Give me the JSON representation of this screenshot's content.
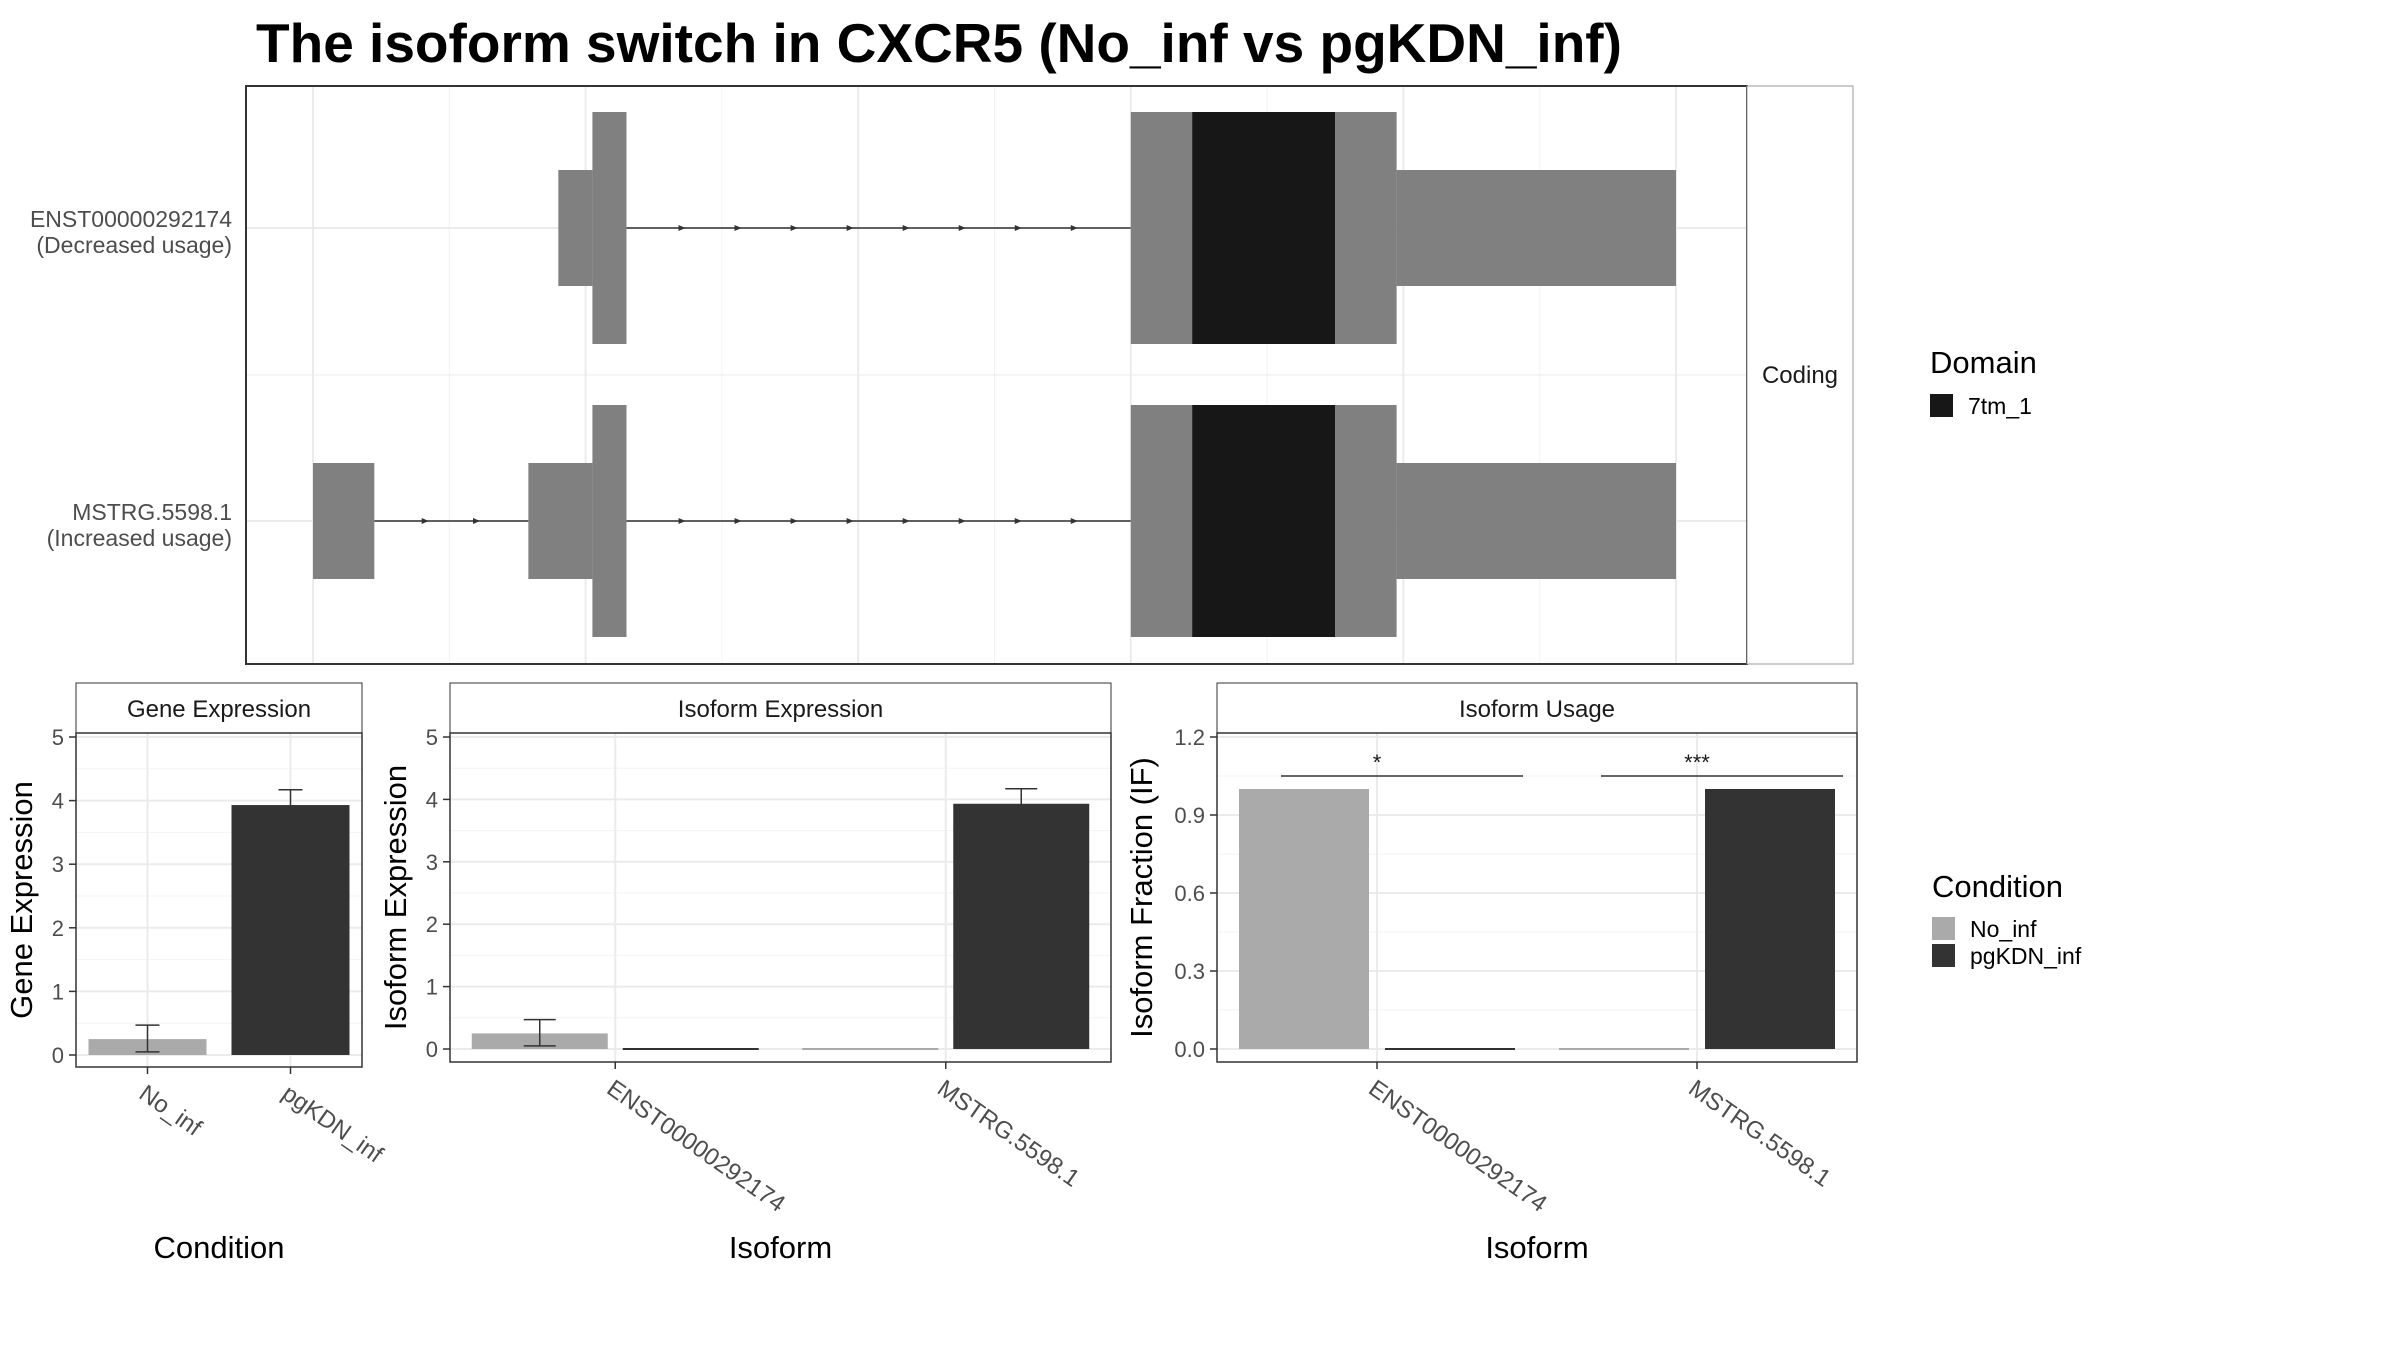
{
  "title": "The isoform switch in CXCR5 (No_inf vs pgKDN_inf)",
  "colors": {
    "no_inf": "#aaaaaa",
    "pgkdn_inf": "#333333",
    "exon": "#808080",
    "domain": "#171717",
    "grid": "#ebebeb",
    "panel_border": "#333333",
    "strip_bg": "#ffffff"
  },
  "chart_data": [
    {
      "id": "transcript_structure",
      "type": "gene-structure",
      "strip_label": "Coding",
      "xlim": [
        0,
        100
      ],
      "tracks": [
        {
          "label_line1": "ENST00000292174",
          "label_line2": "(Decreased usage)",
          "exons": [
            {
              "start": 18.0,
              "end": 20.5,
              "kind": "utr"
            },
            {
              "start": 20.5,
              "end": 23.0,
              "kind": "cds"
            },
            {
              "start": 60.0,
              "end": 64.5,
              "kind": "cds"
            },
            {
              "start": 64.5,
              "end": 75.0,
              "kind": "domain"
            },
            {
              "start": 75.0,
              "end": 79.5,
              "kind": "cds"
            },
            {
              "start": 79.5,
              "end": 100.0,
              "kind": "utr"
            }
          ]
        },
        {
          "label_line1": "MSTRG.5598.1",
          "label_line2": "(Increased usage)",
          "exons": [
            {
              "start": 0.0,
              "end": 4.5,
              "kind": "utr"
            },
            {
              "start": 15.8,
              "end": 20.5,
              "kind": "utr"
            },
            {
              "start": 20.5,
              "end": 23.0,
              "kind": "cds"
            },
            {
              "start": 60.0,
              "end": 64.5,
              "kind": "cds"
            },
            {
              "start": 64.5,
              "end": 75.0,
              "kind": "domain"
            },
            {
              "start": 75.0,
              "end": 79.5,
              "kind": "cds"
            },
            {
              "start": 79.5,
              "end": 100.0,
              "kind": "utr"
            }
          ]
        }
      ]
    },
    {
      "id": "gene_expression",
      "type": "bar",
      "strip_label": "Gene Expression",
      "xlabel": "Condition",
      "ylabel": "Gene Expression",
      "ylim": [
        0,
        5
      ],
      "yticks": [
        0,
        1,
        2,
        3,
        4,
        5
      ],
      "categories": [
        "No_inf",
        "pgKDN_inf"
      ],
      "values": [
        0.25,
        3.93
      ],
      "errors": [
        [
          0.05,
          0.47
        ],
        [
          3.7,
          4.17
        ]
      ],
      "bar_conditions": [
        "No_inf",
        "pgKDN_inf"
      ]
    },
    {
      "id": "isoform_expression",
      "type": "bar",
      "strip_label": "Isoform Expression",
      "xlabel": "Isoform",
      "ylabel": "Isoform Expression",
      "ylim": [
        0,
        5
      ],
      "yticks": [
        0,
        1,
        2,
        3,
        4,
        5
      ],
      "categories": [
        "ENST00000292174",
        "MSTRG.5598.1"
      ],
      "series": [
        {
          "name": "No_inf",
          "values": [
            0.25,
            0.0
          ],
          "errors": [
            [
              0.05,
              0.47
            ],
            null
          ]
        },
        {
          "name": "pgKDN_inf",
          "values": [
            0.0,
            3.93
          ],
          "errors": [
            null,
            [
              3.7,
              4.17
            ]
          ]
        }
      ]
    },
    {
      "id": "isoform_usage",
      "type": "bar",
      "strip_label": "Isoform Usage",
      "xlabel": "Isoform",
      "ylabel": "Isoform Fraction (IF)",
      "ylim": [
        0,
        1.2
      ],
      "yticks": [
        "0.0",
        "0.3",
        "0.6",
        "0.9",
        "1.2"
      ],
      "categories": [
        "ENST00000292174",
        "MSTRG.5598.1"
      ],
      "series": [
        {
          "name": "No_inf",
          "values": [
            1.0,
            0.0
          ]
        },
        {
          "name": "pgKDN_inf",
          "values": [
            0.0,
            1.0
          ]
        }
      ],
      "significance": [
        "*",
        "***"
      ],
      "significance_y": 1.05
    }
  ],
  "legends": {
    "domain": {
      "title": "Domain",
      "items": [
        {
          "label": "7tm_1",
          "color": "#171717"
        }
      ]
    },
    "condition": {
      "title": "Condition",
      "items": [
        {
          "label": "No_inf",
          "color": "#aaaaaa"
        },
        {
          "label": "pgKDN_inf",
          "color": "#333333"
        }
      ]
    }
  }
}
